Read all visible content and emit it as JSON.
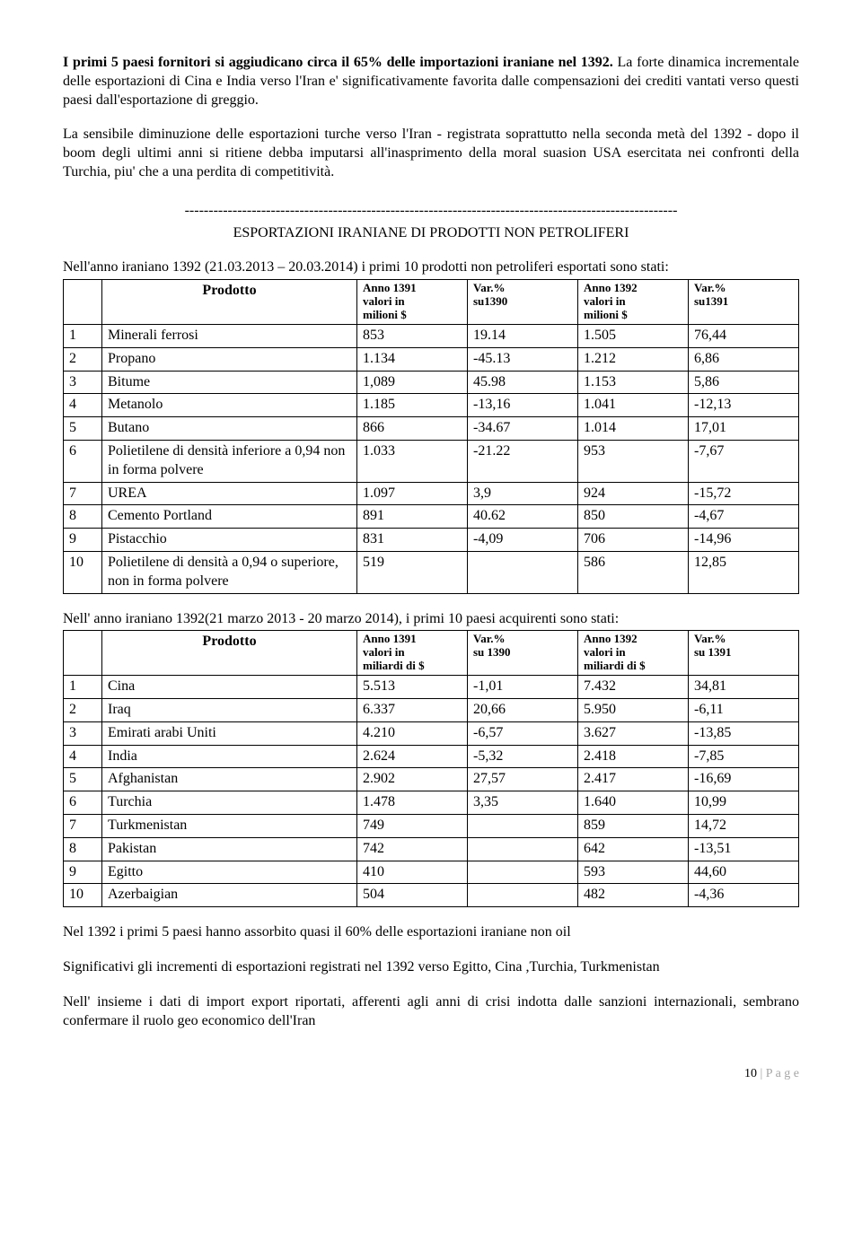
{
  "para1_bold": "I primi 5 paesi fornitori si aggiudicano circa il 65% delle importazioni iraniane nel 1392.",
  "para1_rest": "La forte dinamica incrementale delle esportazioni di Cina e India verso l'Iran e' significativamente favorita dalle compensazioni dei crediti vantati verso questi paesi dall'esportazione di greggio.",
  "para2": "La sensibile diminuzione delle esportazioni turche verso l'Iran - registrata soprattutto nella seconda metà del 1392 - dopo il boom degli ultimi anni si ritiene debba imputarsi all'inasprimento della moral suasion USA esercitata nei confronti della Turchia, piu' che a una perdita di competitività.",
  "divider": "-------------------------------------------------------------------------------------------------------",
  "section_title": "ESPORTAZIONI IRANIANE DI PRODOTTI NON PETROLIFERI",
  "t1_caption": "Nell'anno iraniano 1392 (21.03.2013 – 20.03.2014) i primi 10 prodotti non petroliferi esportati sono stati:",
  "t1": {
    "h_prod": "Prodotto",
    "h_a1391_l1": "Anno 1391",
    "h_a1391_l2": "valori in",
    "h_a1391_l3": "milioni $",
    "h_var90_l1": "Var.%",
    "h_var90_l2": "su1390",
    "h_a1392_l1": "Anno 1392",
    "h_a1392_l2": "valori in",
    "h_a1392_l3": "milioni $",
    "h_var91_l1": "Var.%",
    "h_var91_l2": "su1391",
    "rows": [
      {
        "n": "1",
        "p": "Minerali ferrosi",
        "a": "853",
        "v1": "19.14",
        "b": "1.505",
        "v2": "76,44"
      },
      {
        "n": "2",
        "p": "Propano",
        "a": "1.134",
        "v1": "-45.13",
        "b": "1.212",
        "v2": "6,86"
      },
      {
        "n": "3",
        "p": "Bitume",
        "a": "1,089",
        "v1": "45.98",
        "b": "1.153",
        "v2": "5,86"
      },
      {
        "n": "4",
        "p": "Metanolo",
        "a": "1.185",
        "v1": "-13,16",
        "b": "1.041",
        "v2": "-12,13"
      },
      {
        "n": "5",
        "p": "Butano",
        "a": "866",
        "v1": "-34.67",
        "b": "1.014",
        "v2": "17,01"
      },
      {
        "n": "6",
        "p": "Polietilene di densità inferiore a 0,94 non in forma polvere",
        "a": "1.033",
        "v1": "-21.22",
        "b": "953",
        "v2": "-7,67"
      },
      {
        "n": "7",
        "p": "UREA",
        "a": "1.097",
        "v1": "3,9",
        "b": "924",
        "v2": "-15,72"
      },
      {
        "n": "8",
        "p": "Cemento Portland",
        "a": "891",
        "v1": "40.62",
        "b": "850",
        "v2": "-4,67"
      },
      {
        "n": "9",
        "p": "Pistacchio",
        "a": "831",
        "v1": "-4,09",
        "b": "706",
        "v2": "-14,96"
      },
      {
        "n": "10",
        "p": "Polietilene di densità a 0,94 o superiore, non in forma polvere",
        "a": "519",
        "v1": "",
        "b": "586",
        "v2": "12,85"
      }
    ]
  },
  "t2_caption": "Nell' anno iraniano 1392(21 marzo 2013 - 20 marzo 2014), i primi 10 paesi acquirenti sono stati:",
  "t2": {
    "h_prod": "Prodotto",
    "h_a1391_l1": "Anno 1391",
    "h_a1391_l2": "valori in",
    "h_a1391_l3": "miliardi di $",
    "h_var90_l1": "Var.%",
    "h_var90_l2": "su 1390",
    "h_a1392_l1": "Anno 1392",
    "h_a1392_l2": "valori in",
    "h_a1392_l3": "miliardi di $",
    "h_var91_l1": "Var.%",
    "h_var91_l2": "su 1391",
    "rows": [
      {
        "n": "1",
        "p": "Cina",
        "a": "5.513",
        "v1": "-1,01",
        "b": "7.432",
        "v2": "34,81"
      },
      {
        "n": "2",
        "p": "Iraq",
        "a": "6.337",
        "v1": "20,66",
        "b": "5.950",
        "v2": "-6,11"
      },
      {
        "n": "3",
        "p": "Emirati arabi Uniti",
        "a": "4.210",
        "v1": "-6,57",
        "b": "3.627",
        "v2": "-13,85"
      },
      {
        "n": "4",
        "p": "India",
        "a": "2.624",
        "v1": "-5,32",
        "b": "2.418",
        "v2": "-7,85"
      },
      {
        "n": "5",
        "p": "Afghanistan",
        "a": "2.902",
        "v1": "27,57",
        "b": "2.417",
        "v2": "-16,69"
      },
      {
        "n": "6",
        "p": "Turchia",
        "a": "1.478",
        "v1": "3,35",
        "b": "1.640",
        "v2": "10,99"
      },
      {
        "n": "7",
        "p": "Turkmenistan",
        "a": "749",
        "v1": "",
        "b": "859",
        "v2": "14,72"
      },
      {
        "n": "8",
        "p": "Pakistan",
        "a": "742",
        "v1": "",
        "b": "642",
        "v2": "-13,51"
      },
      {
        "n": "9",
        "p": "Egitto",
        "a": "410",
        "v1": "",
        "b": "593",
        "v2": "44,60"
      },
      {
        "n": "10",
        "p": "Azerbaigian",
        "a": "504",
        "v1": "",
        "b": "482",
        "v2": "-4,36"
      }
    ]
  },
  "para3": "Nel 1392 i primi 5 paesi hanno assorbito quasi il 60% delle esportazioni iraniane non oil",
  "para4": "Significativi gli incrementi di esportazioni registrati nel 1392 verso Egitto, Cina ,Turchia, Turkmenistan",
  "para5": "Nell' insieme i dati di import export riportati, afferenti agli anni di crisi indotta dalle sanzioni internazionali, sembrano confermare il ruolo geo economico dell'Iran",
  "footer_num": "10",
  "footer_label": " | P a g e"
}
